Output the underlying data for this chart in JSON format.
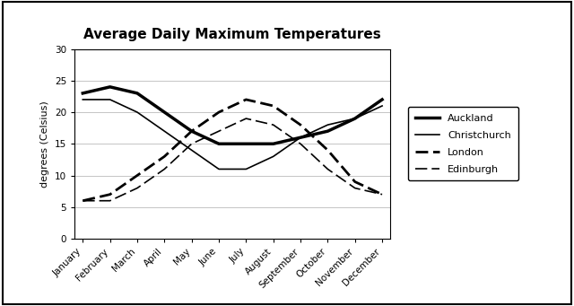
{
  "title": "Average Daily Maximum Temperatures",
  "ylabel": "degrees (Celsius)",
  "months": [
    "January",
    "February",
    "March",
    "April",
    "May",
    "June",
    "July",
    "August",
    "September",
    "October",
    "November",
    "December"
  ],
  "ylim": [
    0,
    30
  ],
  "yticks": [
    0,
    5,
    10,
    15,
    20,
    25,
    30
  ],
  "series": {
    "Auckland": {
      "values": [
        23,
        24,
        23,
        20,
        17,
        15,
        15,
        15,
        16,
        17,
        19,
        22
      ],
      "color": "#000000",
      "linestyle": "solid",
      "linewidth": 2.5
    },
    "Christchurch": {
      "values": [
        22,
        22,
        20,
        17,
        14,
        11,
        11,
        13,
        16,
        18,
        19,
        21
      ],
      "color": "#000000",
      "linestyle": "solid",
      "linewidth": 1.2
    },
    "London": {
      "values": [
        6,
        7,
        10,
        13,
        17,
        20,
        22,
        21,
        18,
        14,
        9,
        7
      ],
      "color": "#000000",
      "linestyle": "dashed",
      "linewidth": 2.0,
      "dashes": [
        5,
        2
      ]
    },
    "Edinburgh": {
      "values": [
        6,
        6,
        8,
        11,
        15,
        17,
        19,
        18,
        15,
        11,
        8,
        7
      ],
      "color": "#000000",
      "linestyle": "dashed",
      "linewidth": 1.2,
      "dashes": [
        8,
        3
      ]
    }
  },
  "legend_order": [
    "Auckland",
    "Christchurch",
    "London",
    "Edinburgh"
  ],
  "background_color": "#ffffff",
  "title_fontsize": 11,
  "label_fontsize": 8,
  "tick_fontsize": 7.5,
  "legend_fontsize": 8
}
